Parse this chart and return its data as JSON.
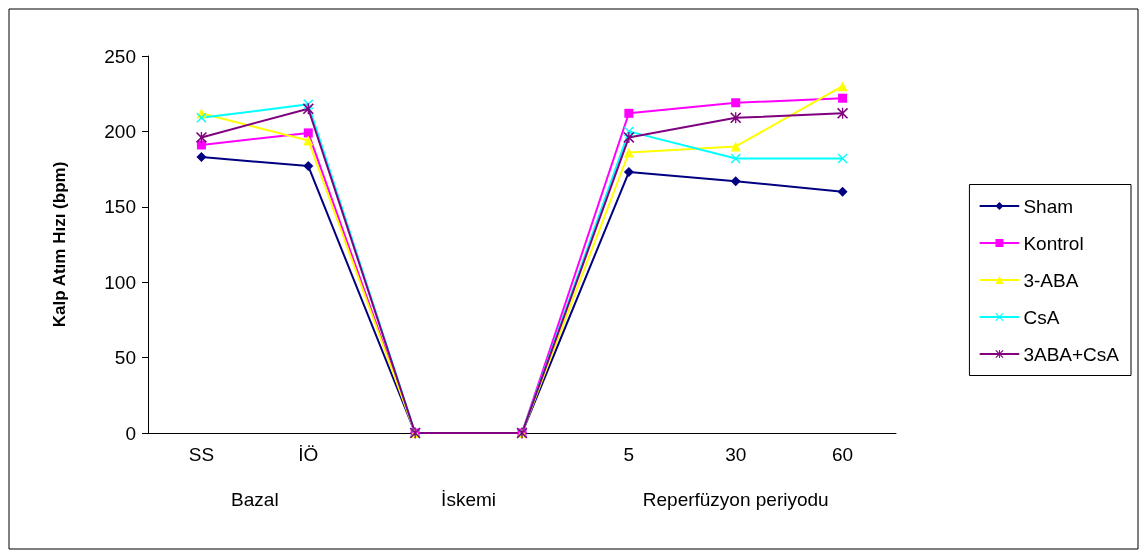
{
  "chart_data": {
    "type": "line",
    "ylabel": "Kalp Atım Hızı (bpm)",
    "categories": [
      "SS",
      "İÖ",
      null,
      null,
      "5",
      "30",
      "60"
    ],
    "annotations": [
      "Bazal",
      "İskemi",
      "Reperfüzyon periyodu"
    ],
    "ylim": [
      0,
      250
    ],
    "yticks": [
      0,
      50,
      100,
      150,
      200,
      250
    ],
    "grid": false,
    "legend": "right",
    "line_style": "solid",
    "series": [
      {
        "name": "Sham",
        "color": "#000080",
        "marker": "diamond",
        "values": [
          183,
          177,
          0,
          0,
          173,
          167,
          160
        ]
      },
      {
        "name": "Kontrol",
        "color": "#ff00ff",
        "marker": "square",
        "values": [
          191,
          199,
          0,
          0,
          212,
          219,
          222
        ]
      },
      {
        "name": "3-ABA",
        "color": "#ffff00",
        "marker": "triangle",
        "values": [
          212,
          194,
          0,
          0,
          186,
          190,
          230
        ]
      },
      {
        "name": "CsA",
        "color": "#00ffff",
        "marker": "cross",
        "values": [
          209,
          218,
          0,
          0,
          200,
          182,
          182
        ]
      },
      {
        "name": "3ABA+CsA",
        "color": "#800080",
        "marker": "star",
        "values": [
          196,
          215,
          0,
          0,
          196,
          209,
          212
        ]
      }
    ]
  }
}
